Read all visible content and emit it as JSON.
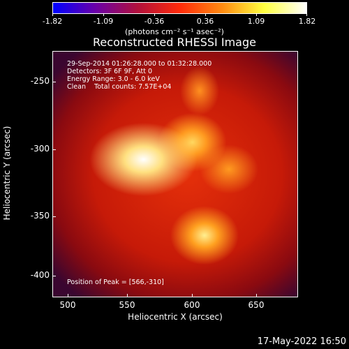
{
  "colorbar": {
    "ticks": [
      "-1.82",
      "-1.09",
      "-0.36",
      "0.36",
      "1.09",
      "1.82"
    ],
    "units_text": "(photons cm⁻² s⁻¹ asec⁻²)"
  },
  "title": "Reconstructed RHESSI Image",
  "info": {
    "line1": "29-Sep-2014 01:26:28.000 to 01:32:28.000",
    "line2": "Detectors: 3F 6F 9F, Att 0",
    "line3": "Energy Range: 3.0 - 6.0 keV",
    "line4": "Clean    Total counts: 7.57E+04"
  },
  "peak": "Position of Peak = [566,-310]",
  "axes": {
    "xlabel": "Heliocentric X (arcsec)",
    "ylabel": "Heliocentric Y (arcsec)",
    "xticks": [
      "500",
      "550",
      "600",
      "650"
    ],
    "yticks": [
      "-250",
      "-300",
      "-350",
      "-400"
    ]
  },
  "footer_date": "17-May-2022 16:50",
  "colors": {
    "background": "#000000",
    "colormap": [
      "#0000ff",
      "#6a00a8",
      "#b0103c",
      "#ff2a0a",
      "#ff8a10",
      "#ffff40",
      "#ffffff"
    ]
  }
}
